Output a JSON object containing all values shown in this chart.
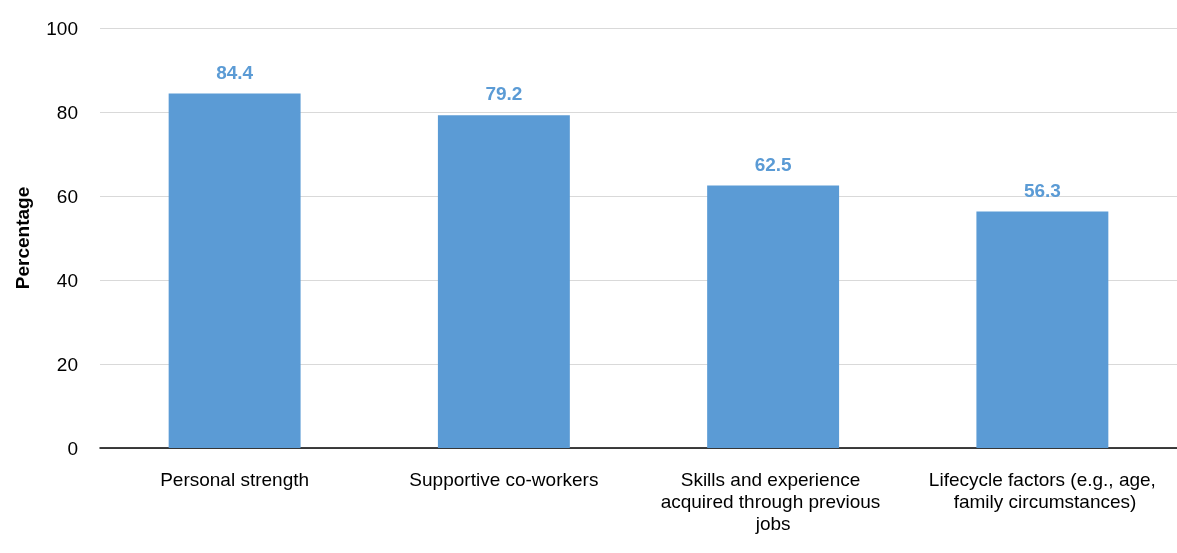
{
  "chart_data": {
    "type": "bar",
    "ylabel": "Percentage",
    "categories": [
      "Personal strength",
      "Supportive co-workers",
      "Skills and experience acquired through previous jobs",
      "Lifecycle factors (e.g., age, family circumstances)"
    ],
    "values": [
      84.4,
      79.2,
      62.5,
      56.3
    ],
    "color": "#5b9bd5",
    "ylim": [
      0,
      100
    ],
    "yticks": [
      0,
      20,
      40,
      60,
      80,
      100
    ],
    "grid": "y",
    "data_labels": true
  }
}
